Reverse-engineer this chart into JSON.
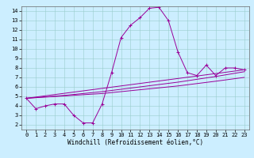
{
  "xlabel": "Windchill (Refroidissement éolien,°C)",
  "xlim": [
    -0.5,
    23.5
  ],
  "ylim": [
    1.5,
    14.5
  ],
  "xticks": [
    0,
    1,
    2,
    3,
    4,
    5,
    6,
    7,
    8,
    9,
    10,
    11,
    12,
    13,
    14,
    15,
    16,
    17,
    18,
    19,
    20,
    21,
    22,
    23
  ],
  "yticks": [
    2,
    3,
    4,
    5,
    6,
    7,
    8,
    9,
    10,
    11,
    12,
    13,
    14
  ],
  "bg_color": "#cceeff",
  "line_color": "#990099",
  "grid_color": "#99cccc",
  "line1_x": [
    0,
    1,
    2,
    3,
    4,
    5,
    6,
    7,
    8,
    9,
    10,
    11,
    12,
    13,
    14,
    15,
    16,
    17,
    18,
    19,
    20,
    21,
    22,
    23
  ],
  "line1_y": [
    4.8,
    3.7,
    4.0,
    4.2,
    4.2,
    3.0,
    2.2,
    2.2,
    4.2,
    7.5,
    11.2,
    12.5,
    13.3,
    14.3,
    14.4,
    13.0,
    9.7,
    7.5,
    7.2,
    8.3,
    7.2,
    8.0,
    8.0,
    7.8
  ],
  "line2_x": [
    0,
    23
  ],
  "line2_y": [
    4.8,
    7.8
  ],
  "line3_x": [
    0,
    4,
    8,
    12,
    16,
    20,
    23
  ],
  "line3_y": [
    4.8,
    5.1,
    5.5,
    6.0,
    6.5,
    7.1,
    7.6
  ],
  "line4_x": [
    0,
    4,
    8,
    12,
    16,
    20,
    23
  ],
  "line4_y": [
    4.8,
    5.05,
    5.3,
    5.7,
    6.1,
    6.6,
    7.0
  ]
}
